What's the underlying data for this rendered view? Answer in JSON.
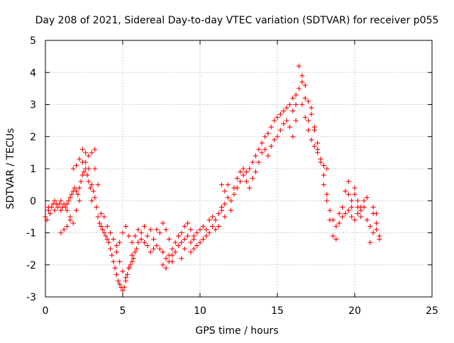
{
  "chart_data": {
    "type": "scatter",
    "title": "Day 208 of 2021, Sidereal Day-to-day VTEC variation (SDTVAR) for receiver p055",
    "xlabel": "GPS time / hours",
    "ylabel": "SDTVAR / TECUs",
    "xlim": [
      0,
      25
    ],
    "ylim": [
      -3,
      5
    ],
    "xticks": [
      0,
      5,
      10,
      15,
      20,
      25
    ],
    "yticks": [
      -3,
      -2,
      -1,
      0,
      1,
      2,
      3,
      4,
      5
    ],
    "grid": true,
    "marker": "+",
    "series": [
      {
        "name": "SDTVAR",
        "color": "#ff0000",
        "points": [
          [
            0.0,
            -0.5
          ],
          [
            0.1,
            -0.6
          ],
          [
            0.2,
            -0.3
          ],
          [
            0.3,
            -0.4
          ],
          [
            0.4,
            -0.2
          ],
          [
            0.5,
            -0.1
          ],
          [
            0.6,
            -0.3
          ],
          [
            0.7,
            -0.1
          ],
          [
            0.8,
            -0.2
          ],
          [
            0.9,
            -0.1
          ],
          [
            1.0,
            -0.3
          ],
          [
            1.1,
            -0.2
          ],
          [
            1.2,
            -0.1
          ],
          [
            1.3,
            -0.2
          ],
          [
            1.4,
            -0.1
          ],
          [
            1.5,
            0.0
          ],
          [
            1.6,
            0.1
          ],
          [
            1.7,
            0.2
          ],
          [
            1.8,
            0.3
          ],
          [
            1.9,
            0.4
          ],
          [
            2.0,
            0.3
          ],
          [
            2.1,
            0.2
          ],
          [
            2.2,
            0.4
          ],
          [
            2.3,
            0.6
          ],
          [
            2.4,
            0.8
          ],
          [
            2.5,
            0.9
          ],
          [
            2.6,
            1.0
          ],
          [
            2.7,
            0.8
          ],
          [
            2.8,
            0.6
          ],
          [
            2.9,
            0.4
          ],
          [
            3.0,
            0.5
          ],
          [
            3.1,
            0.3
          ],
          [
            3.2,
            0.1
          ],
          [
            3.3,
            -0.2
          ],
          [
            3.4,
            -0.5
          ],
          [
            3.5,
            -0.7
          ],
          [
            3.6,
            -0.8
          ],
          [
            3.7,
            -0.9
          ],
          [
            3.8,
            -1.0
          ],
          [
            3.9,
            -1.1
          ],
          [
            4.0,
            -1.2
          ],
          [
            4.1,
            -1.3
          ],
          [
            4.2,
            -1.5
          ],
          [
            4.3,
            -1.7
          ],
          [
            4.4,
            -1.9
          ],
          [
            4.5,
            -2.1
          ],
          [
            4.6,
            -2.3
          ],
          [
            4.7,
            -2.5
          ],
          [
            4.8,
            -2.6
          ],
          [
            4.9,
            -2.7
          ],
          [
            5.0,
            -2.8
          ],
          [
            5.1,
            -2.7
          ],
          [
            5.2,
            -2.5
          ],
          [
            5.3,
            -2.3
          ],
          [
            5.4,
            -2.1
          ],
          [
            5.5,
            -2.0
          ],
          [
            5.6,
            -1.9
          ],
          [
            5.7,
            -1.8
          ],
          [
            5.8,
            -1.6
          ],
          [
            5.9,
            -1.5
          ],
          [
            6.0,
            -1.3
          ],
          [
            6.2,
            -1.2
          ],
          [
            6.4,
            -1.3
          ],
          [
            6.6,
            -1.4
          ],
          [
            6.8,
            -1.6
          ],
          [
            7.0,
            -1.5
          ],
          [
            7.2,
            -1.4
          ],
          [
            7.4,
            -1.5
          ],
          [
            7.6,
            -1.6
          ],
          [
            7.8,
            -1.8
          ],
          [
            8.0,
            -1.9
          ],
          [
            8.2,
            -1.7
          ],
          [
            8.4,
            -1.6
          ],
          [
            8.6,
            -1.4
          ],
          [
            8.8,
            -1.3
          ],
          [
            9.0,
            -1.2
          ],
          [
            9.2,
            -1.1
          ],
          [
            9.4,
            -1.3
          ],
          [
            9.6,
            -1.2
          ],
          [
            9.8,
            -1.0
          ],
          [
            10.0,
            -0.9
          ],
          [
            10.2,
            -0.8
          ],
          [
            10.4,
            -0.9
          ],
          [
            10.6,
            -1.0
          ],
          [
            10.8,
            -0.8
          ],
          [
            11.0,
            -0.6
          ],
          [
            11.2,
            -0.4
          ],
          [
            11.4,
            -0.2
          ],
          [
            11.6,
            -0.1
          ],
          [
            11.8,
            0.1
          ],
          [
            12.0,
            0.0
          ],
          [
            12.2,
            0.2
          ],
          [
            12.4,
            0.4
          ],
          [
            12.6,
            0.6
          ],
          [
            12.8,
            0.8
          ],
          [
            13.0,
            0.9
          ],
          [
            13.2,
            1.0
          ],
          [
            13.4,
            1.2
          ],
          [
            13.6,
            1.4
          ],
          [
            13.8,
            1.6
          ],
          [
            14.0,
            1.8
          ],
          [
            14.2,
            2.0
          ],
          [
            14.4,
            2.1
          ],
          [
            14.6,
            2.3
          ],
          [
            14.8,
            2.5
          ],
          [
            15.0,
            2.6
          ],
          [
            15.2,
            2.7
          ],
          [
            15.4,
            2.8
          ],
          [
            15.6,
            2.9
          ],
          [
            15.8,
            3.0
          ],
          [
            16.0,
            2.8
          ],
          [
            16.2,
            3.0
          ],
          [
            16.4,
            3.5
          ],
          [
            16.6,
            3.9
          ],
          [
            16.8,
            3.6
          ],
          [
            17.0,
            3.1
          ],
          [
            17.2,
            2.7
          ],
          [
            17.4,
            2.3
          ],
          [
            17.6,
            1.8
          ],
          [
            17.8,
            1.2
          ],
          [
            18.0,
            0.8
          ],
          [
            18.2,
            0.2
          ],
          [
            18.4,
            -0.3
          ],
          [
            18.6,
            -0.6
          ],
          [
            18.8,
            -0.8
          ],
          [
            19.0,
            -0.7
          ],
          [
            19.2,
            -0.5
          ],
          [
            19.4,
            -0.4
          ],
          [
            19.6,
            -0.3
          ],
          [
            19.8,
            -0.5
          ],
          [
            20.0,
            -0.6
          ],
          [
            20.2,
            -0.4
          ],
          [
            20.4,
            -0.2
          ],
          [
            20.6,
            0.0
          ],
          [
            20.8,
            0.1
          ],
          [
            21.0,
            -0.8
          ],
          [
            21.2,
            -1.0
          ],
          [
            21.4,
            -0.7
          ],
          [
            21.6,
            -1.1
          ],
          [
            0.2,
            -0.2
          ],
          [
            0.6,
            0.0
          ],
          [
            1.0,
            0.0
          ],
          [
            1.4,
            -0.3
          ],
          [
            1.6,
            -0.5
          ],
          [
            1.8,
            -0.7
          ],
          [
            2.0,
            -0.3
          ],
          [
            2.2,
            0.0
          ],
          [
            2.4,
            1.2
          ],
          [
            2.6,
            1.5
          ],
          [
            2.8,
            1.4
          ],
          [
            3.0,
            1.5
          ],
          [
            3.2,
            1.0
          ],
          [
            3.4,
            0.5
          ],
          [
            3.6,
            -0.4
          ],
          [
            3.8,
            -0.5
          ],
          [
            4.0,
            -0.8
          ],
          [
            4.2,
            -1.0
          ],
          [
            4.4,
            -1.2
          ],
          [
            4.6,
            -1.4
          ],
          [
            4.8,
            -1.3
          ],
          [
            5.0,
            -1.0
          ],
          [
            5.2,
            -0.8
          ],
          [
            5.4,
            -1.1
          ],
          [
            5.6,
            -1.3
          ],
          [
            5.8,
            -1.1
          ],
          [
            6.0,
            -0.9
          ],
          [
            6.2,
            -1.0
          ],
          [
            6.4,
            -0.8
          ],
          [
            6.6,
            -1.1
          ],
          [
            6.8,
            -0.9
          ],
          [
            7.0,
            -1.2
          ],
          [
            7.2,
            -0.9
          ],
          [
            7.4,
            -1.0
          ],
          [
            7.6,
            -0.7
          ],
          [
            7.8,
            -0.9
          ],
          [
            8.0,
            -1.2
          ],
          [
            8.2,
            -1.5
          ],
          [
            8.4,
            -1.3
          ],
          [
            8.6,
            -1.1
          ],
          [
            8.8,
            -1.0
          ],
          [
            9.0,
            -0.8
          ],
          [
            9.2,
            -0.7
          ],
          [
            9.4,
            -0.9
          ],
          [
            9.6,
            -1.1
          ],
          [
            9.8,
            -1.4
          ],
          [
            10.0,
            -1.3
          ],
          [
            10.2,
            -1.2
          ],
          [
            10.4,
            -1.1
          ],
          [
            10.6,
            -0.6
          ],
          [
            10.8,
            -0.5
          ],
          [
            11.0,
            -0.9
          ],
          [
            11.2,
            -0.8
          ],
          [
            11.4,
            -0.3
          ],
          [
            11.6,
            0.3
          ],
          [
            11.8,
            0.5
          ],
          [
            12.0,
            -0.3
          ],
          [
            12.2,
            0.4
          ],
          [
            12.4,
            0.7
          ],
          [
            12.6,
            0.9
          ],
          [
            12.8,
            1.0
          ],
          [
            13.0,
            0.6
          ],
          [
            13.2,
            0.4
          ],
          [
            13.4,
            0.7
          ],
          [
            13.6,
            0.9
          ],
          [
            13.8,
            1.2
          ],
          [
            14.0,
            1.5
          ],
          [
            14.2,
            1.6
          ],
          [
            14.4,
            1.4
          ],
          [
            14.6,
            1.7
          ],
          [
            14.8,
            1.9
          ],
          [
            15.0,
            2.0
          ],
          [
            15.2,
            2.2
          ],
          [
            15.4,
            2.4
          ],
          [
            15.6,
            2.5
          ],
          [
            15.8,
            2.3
          ],
          [
            16.0,
            3.2
          ],
          [
            16.2,
            3.3
          ],
          [
            16.4,
            4.2
          ],
          [
            16.6,
            3.0
          ],
          [
            16.8,
            2.6
          ],
          [
            17.0,
            2.5
          ],
          [
            17.2,
            2.9
          ],
          [
            17.4,
            2.2
          ],
          [
            17.6,
            1.6
          ],
          [
            17.8,
            1.3
          ],
          [
            18.0,
            0.5
          ],
          [
            18.2,
            0.0
          ],
          [
            18.4,
            -0.6
          ],
          [
            18.6,
            -1.1
          ],
          [
            18.8,
            -1.2
          ],
          [
            19.0,
            -0.4
          ],
          [
            19.2,
            -0.2
          ],
          [
            19.4,
            0.3
          ],
          [
            19.6,
            0.6
          ],
          [
            19.8,
            0.0
          ],
          [
            20.0,
            0.2
          ],
          [
            20.2,
            -0.2
          ],
          [
            20.4,
            -0.5
          ],
          [
            21.0,
            -1.3
          ],
          [
            21.2,
            -0.4
          ],
          [
            21.4,
            -0.9
          ],
          [
            21.6,
            -1.2
          ],
          [
            1.0,
            -1.0
          ],
          [
            1.2,
            -0.9
          ],
          [
            1.4,
            -0.8
          ],
          [
            1.6,
            -0.6
          ],
          [
            1.8,
            1.0
          ],
          [
            2.0,
            1.1
          ],
          [
            2.2,
            1.3
          ],
          [
            2.4,
            1.6
          ],
          [
            2.6,
            1.2
          ],
          [
            2.8,
            1.0
          ],
          [
            3.0,
            0.0
          ],
          [
            3.2,
            1.6
          ],
          [
            4.6,
            -1.6
          ],
          [
            4.8,
            -1.9
          ],
          [
            5.0,
            -2.2
          ],
          [
            5.2,
            -2.4
          ],
          [
            5.4,
            -2.1
          ],
          [
            5.6,
            -1.7
          ],
          [
            7.6,
            -2.0
          ],
          [
            7.8,
            -2.1
          ],
          [
            8.0,
            -1.7
          ],
          [
            8.2,
            -1.9
          ],
          [
            8.8,
            -1.8
          ],
          [
            9.0,
            -1.5
          ],
          [
            9.4,
            -1.6
          ],
          [
            9.6,
            -1.5
          ],
          [
            11.4,
            0.5
          ],
          [
            11.6,
            -0.5
          ],
          [
            16.0,
            2.0
          ],
          [
            16.2,
            2.5
          ],
          [
            16.6,
            3.7
          ],
          [
            16.8,
            3.2
          ],
          [
            17.0,
            2.2
          ],
          [
            17.2,
            1.9
          ],
          [
            17.4,
            1.7
          ],
          [
            17.6,
            1.5
          ],
          [
            18.0,
            1.1
          ],
          [
            18.2,
            1.0
          ],
          [
            19.6,
            0.2
          ],
          [
            19.8,
            -0.2
          ],
          [
            20.0,
            0.4
          ],
          [
            20.2,
            0.0
          ],
          [
            20.4,
            -0.3
          ],
          [
            20.6,
            -0.2
          ],
          [
            20.8,
            -0.6
          ],
          [
            21.2,
            -0.2
          ],
          [
            21.4,
            -0.4
          ]
        ]
      }
    ]
  }
}
